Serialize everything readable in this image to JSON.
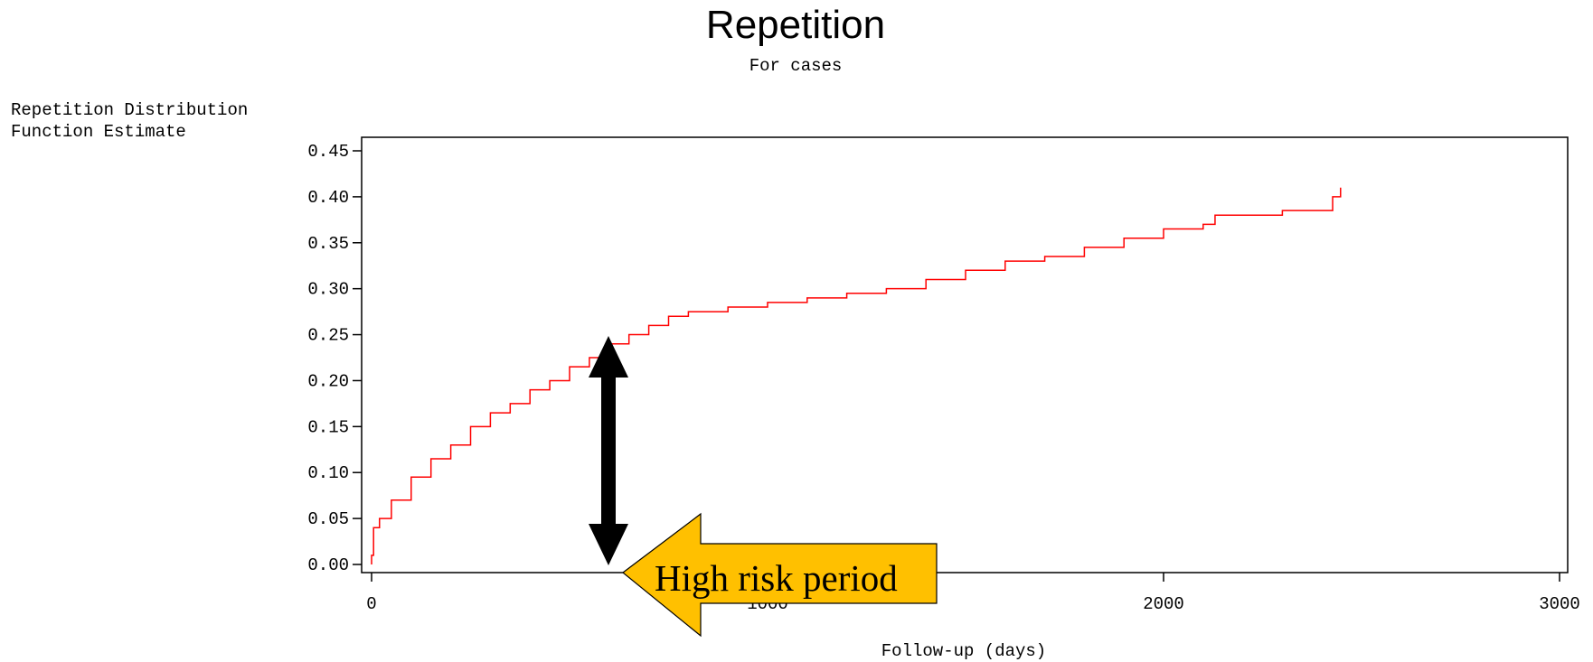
{
  "chart_data": {
    "type": "step",
    "title": "Repetition",
    "subtitle": "For cases",
    "y_label": [
      "Repetition Distribution",
      "Function Estimate"
    ],
    "x_label": "Follow-up (days)",
    "annotation": "High risk period",
    "color": "#ff0000",
    "xlim": [
      0,
      3000
    ],
    "xticks": [
      0,
      1000,
      2000,
      3000
    ],
    "ylim": [
      0,
      0.45
    ],
    "yticks": [
      {
        "value": 0,
        "label": "0.00"
      },
      {
        "value": 0.05,
        "label": "0.05"
      },
      {
        "value": 0.1,
        "label": "0.10"
      },
      {
        "value": 0.15,
        "label": "0.15"
      },
      {
        "value": 0.2,
        "label": "0.20"
      },
      {
        "value": 0.25,
        "label": "0.25"
      },
      {
        "value": 0.3,
        "label": "0.30"
      },
      {
        "value": 0.35,
        "label": "0.35"
      },
      {
        "value": 0.4,
        "label": "0.40"
      },
      {
        "value": 0.45,
        "label": "0.45"
      }
    ],
    "x": [
      0,
      5,
      20,
      50,
      100,
      150,
      200,
      250,
      300,
      350,
      400,
      450,
      500,
      550,
      600,
      650,
      700,
      750,
      800,
      900,
      1000,
      1100,
      1200,
      1300,
      1400,
      1500,
      1600,
      1700,
      1800,
      1900,
      2000,
      2100,
      2130,
      2300,
      2427,
      2447
    ],
    "values": [
      0.01,
      0.04,
      0.05,
      0.07,
      0.095,
      0.115,
      0.13,
      0.15,
      0.165,
      0.175,
      0.19,
      0.2,
      0.215,
      0.225,
      0.24,
      0.25,
      0.26,
      0.27,
      0.275,
      0.28,
      0.285,
      0.29,
      0.295,
      0.3,
      0.31,
      0.32,
      0.33,
      0.335,
      0.345,
      0.355,
      0.365,
      0.37,
      0.38,
      0.385,
      0.4,
      0.41
    ]
  }
}
